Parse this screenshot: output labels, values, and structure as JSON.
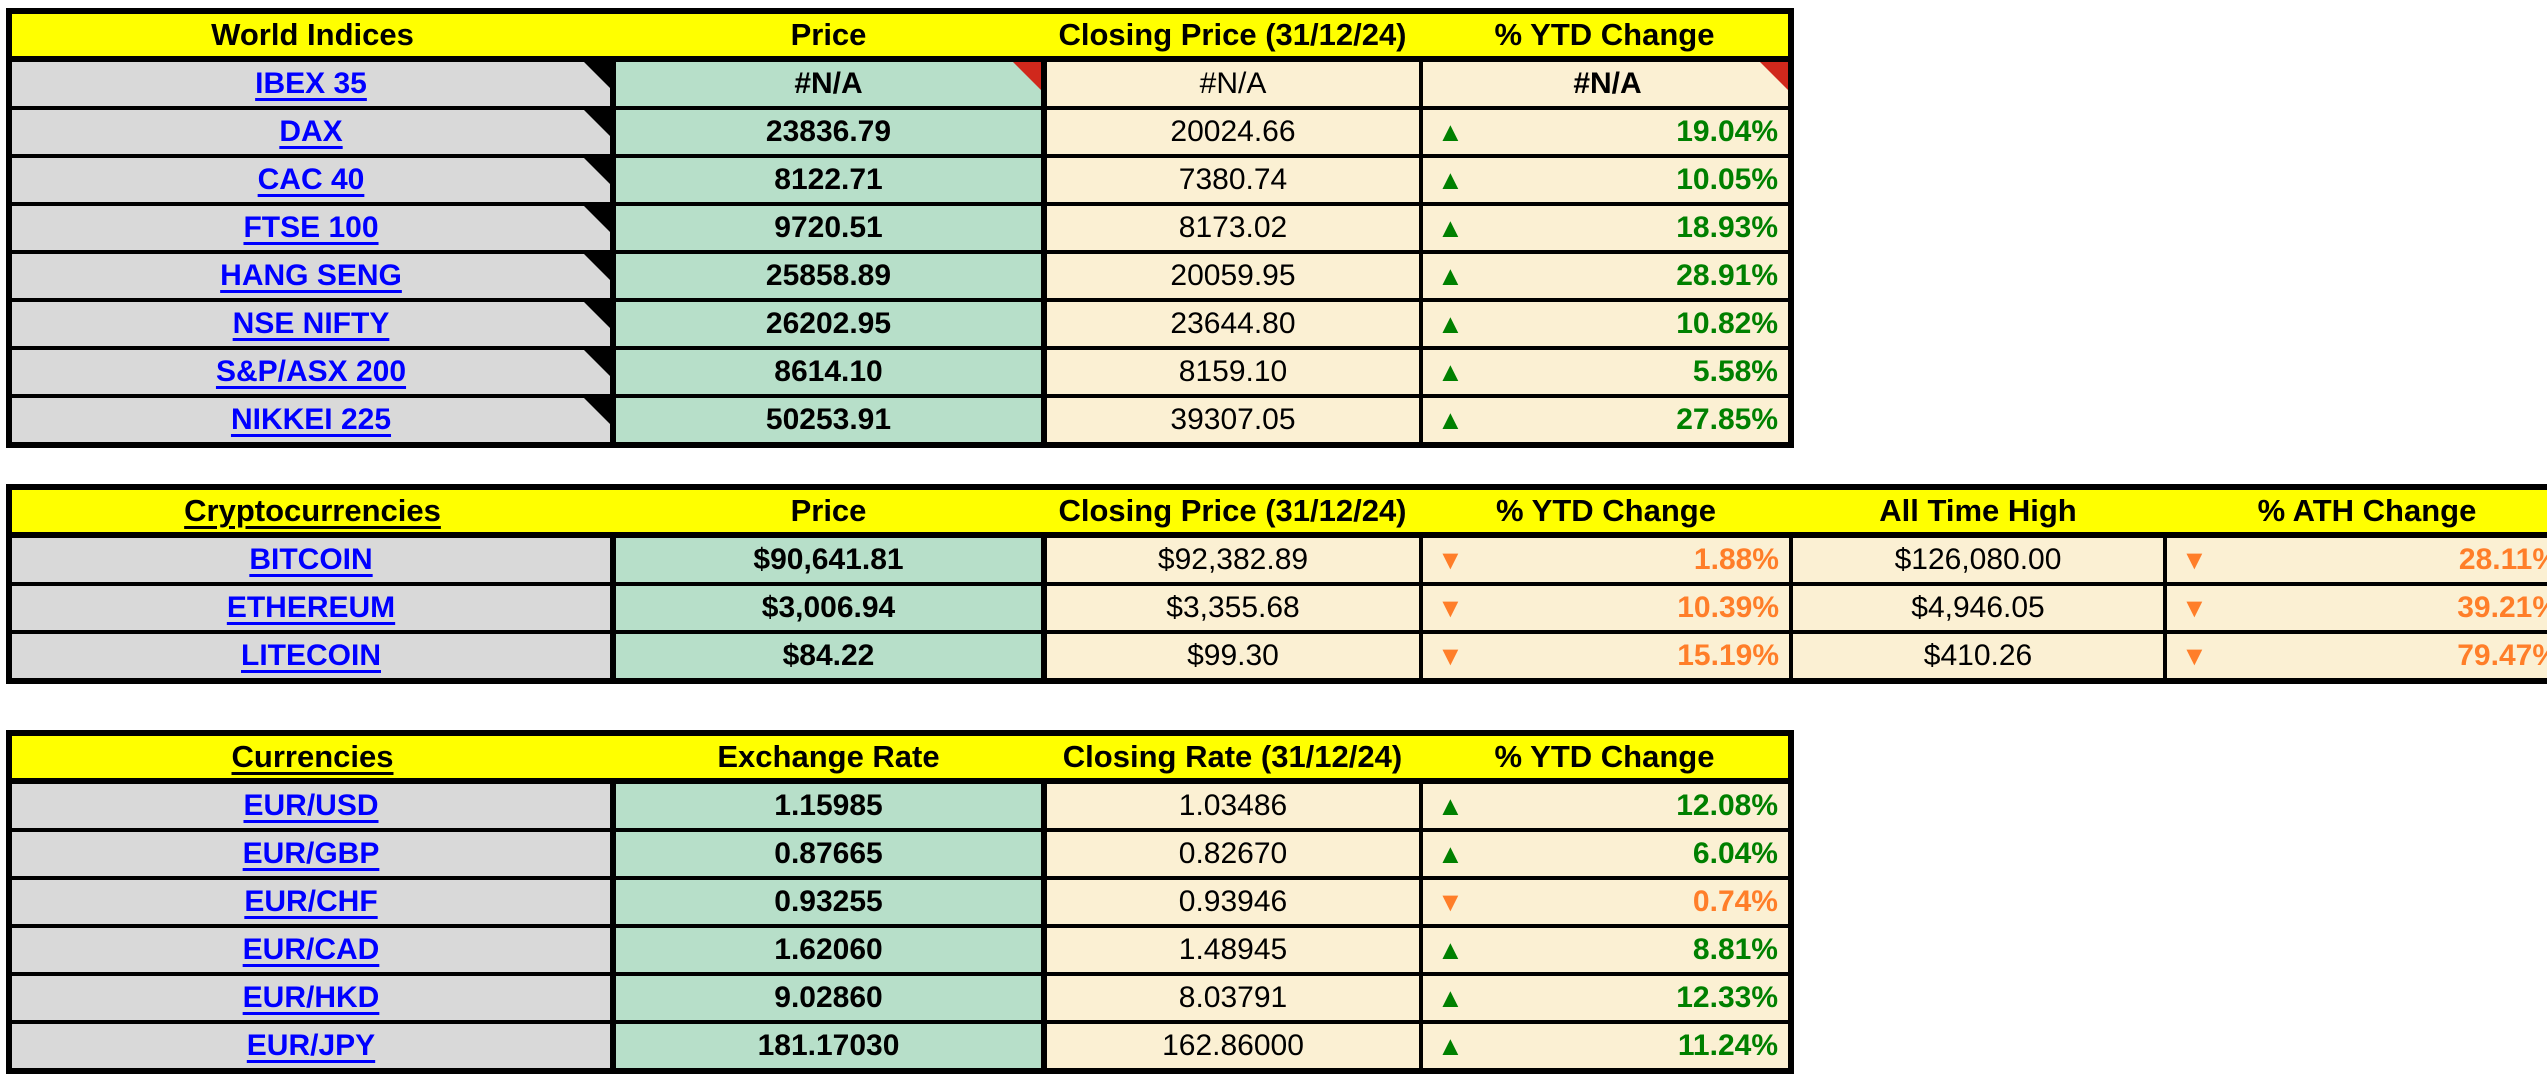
{
  "colors": {
    "header_bg": "#ffff00",
    "name_cell_bg": "#d9d9d9",
    "price_cell_bg": "#b7dfc9",
    "value_cell_bg": "#fbf0d3",
    "link_blue": "#0000ff",
    "up_green": "#008000",
    "down_orange": "#ff7e29",
    "error_corner_red": "#d0281c",
    "corner_marker_black": "#000000"
  },
  "world_indices": {
    "headers": {
      "name": "World Indices",
      "price": "Price",
      "closing": "Closing Price (31/12/24)",
      "ytd": "% YTD Change"
    },
    "rows": [
      {
        "name": "IBEX 35",
        "price": "#N/A",
        "closing": "#N/A",
        "arrow": "",
        "dir": "na",
        "ytd": "#N/A"
      },
      {
        "name": "DAX",
        "price": "23836.79",
        "closing": "20024.66",
        "arrow": "▲",
        "dir": "up",
        "ytd": "19.04%"
      },
      {
        "name": "CAC 40",
        "price": "8122.71",
        "closing": "7380.74",
        "arrow": "▲",
        "dir": "up",
        "ytd": "10.05%"
      },
      {
        "name": "FTSE 100",
        "price": "9720.51",
        "closing": "8173.02",
        "arrow": "▲",
        "dir": "up",
        "ytd": "18.93%"
      },
      {
        "name": "HANG SENG",
        "price": "25858.89",
        "closing": "20059.95",
        "arrow": "▲",
        "dir": "up",
        "ytd": "28.91%"
      },
      {
        "name": "NSE NIFTY",
        "price": "26202.95",
        "closing": "23644.80",
        "arrow": "▲",
        "dir": "up",
        "ytd": "10.82%"
      },
      {
        "name": "S&P/ASX 200",
        "price": "8614.10",
        "closing": "8159.10",
        "arrow": "▲",
        "dir": "up",
        "ytd": "5.58%"
      },
      {
        "name": "NIKKEI 225",
        "price": "50253.91",
        "closing": "39307.05",
        "arrow": "▲",
        "dir": "up",
        "ytd": "27.85%"
      }
    ]
  },
  "cryptocurrencies": {
    "headers": {
      "name": "Cryptocurrencies",
      "price": "Price",
      "closing": "Closing Price (31/12/24)",
      "ytd": "% YTD Change",
      "ath": "All Time High",
      "ath_change": "% ATH Change"
    },
    "rows": [
      {
        "name": "BITCOIN",
        "price": "$90,641.81",
        "closing": "$92,382.89",
        "arrow": "▼",
        "dir": "down",
        "ytd": "1.88%",
        "ath": "$126,080.00",
        "ath_arrow": "▼",
        "ath_dir": "down",
        "ath_pct": "28.11%"
      },
      {
        "name": "ETHEREUM",
        "price": "$3,006.94",
        "closing": "$3,355.68",
        "arrow": "▼",
        "dir": "down",
        "ytd": "10.39%",
        "ath": "$4,946.05",
        "ath_arrow": "▼",
        "ath_dir": "down",
        "ath_pct": "39.21%"
      },
      {
        "name": "LITECOIN",
        "price": "$84.22",
        "closing": "$99.30",
        "arrow": "▼",
        "dir": "down",
        "ytd": "15.19%",
        "ath": "$410.26",
        "ath_arrow": "▼",
        "ath_dir": "down",
        "ath_pct": "79.47%"
      }
    ]
  },
  "currencies": {
    "headers": {
      "name": "Currencies",
      "price": "Exchange Rate",
      "closing": "Closing Rate (31/12/24)",
      "ytd": "% YTD Change"
    },
    "rows": [
      {
        "name": "EUR/USD",
        "price": "1.15985",
        "closing": "1.03486",
        "arrow": "▲",
        "dir": "up",
        "ytd": "12.08%"
      },
      {
        "name": "EUR/GBP",
        "price": "0.87665",
        "closing": "0.82670",
        "arrow": "▲",
        "dir": "up",
        "ytd": "6.04%"
      },
      {
        "name": "EUR/CHF",
        "price": "0.93255",
        "closing": "0.93946",
        "arrow": "▼",
        "dir": "down",
        "ytd": "0.74%"
      },
      {
        "name": "EUR/CAD",
        "price": "1.62060",
        "closing": "1.48945",
        "arrow": "▲",
        "dir": "up",
        "ytd": "8.81%"
      },
      {
        "name": "EUR/HKD",
        "price": "9.02860",
        "closing": "8.03791",
        "arrow": "▲",
        "dir": "up",
        "ytd": "12.33%"
      },
      {
        "name": "EUR/JPY",
        "price": "181.17030",
        "closing": "162.86000",
        "arrow": "▲",
        "dir": "up",
        "ytd": "11.24%"
      }
    ]
  }
}
